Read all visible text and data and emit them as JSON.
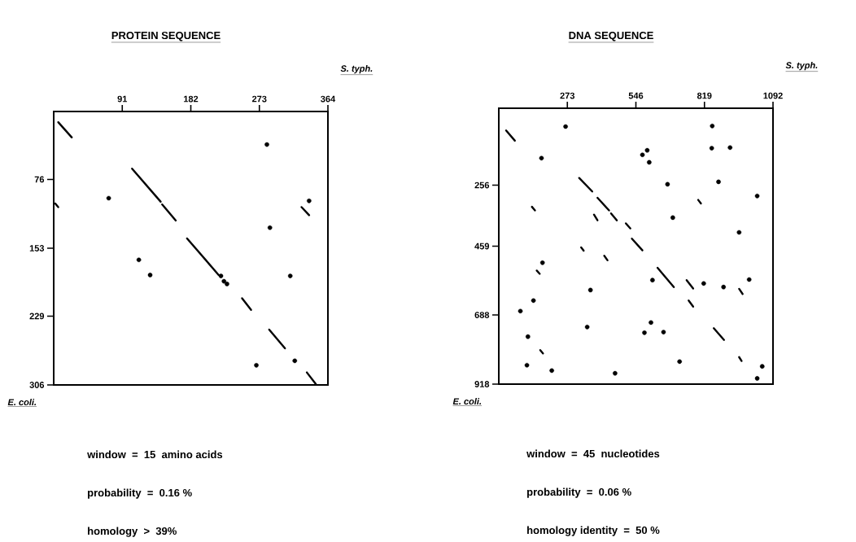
{
  "chart_data": [
    {
      "type": "scatter",
      "title": "PROTEIN SEQUENCE",
      "xlabel": "S. typh.",
      "ylabel": "E. coli.",
      "xlim": [
        0,
        364
      ],
      "ylim": [
        306,
        0
      ],
      "xticks": [
        91,
        182,
        273,
        364
      ],
      "yticks": [
        76,
        153,
        229,
        306
      ],
      "annotations": [
        "window  =  15  amino acids",
        "probability  =  0.16 %",
        "homology  >  39%"
      ],
      "series": [
        {
          "type": "line",
          "color": "#000000",
          "marker": "none",
          "x": [
            6,
            24
          ],
          "values": [
            12,
            29
          ]
        },
        {
          "type": "line",
          "color": "#000000",
          "marker": "none",
          "x": [
            104,
            142
          ],
          "values": [
            64,
            101
          ]
        },
        {
          "type": "line",
          "color": "#000000",
          "marker": "none",
          "x": [
            144,
            162
          ],
          "values": [
            104,
            122
          ]
        },
        {
          "type": "line",
          "color": "#000000",
          "marker": "none",
          "x": [
            177,
            219
          ],
          "values": [
            142,
            183
          ]
        },
        {
          "type": "line",
          "color": "#000000",
          "marker": "none",
          "x": [
            250,
            262
          ],
          "values": [
            209,
            222
          ]
        },
        {
          "type": "line",
          "color": "#000000",
          "marker": "none",
          "x": [
            286,
            307
          ],
          "values": [
            244,
            265
          ]
        },
        {
          "type": "line",
          "color": "#000000",
          "marker": "none",
          "x": [
            336,
            348
          ],
          "values": [
            292,
            305
          ]
        },
        {
          "type": "line",
          "color": "#000000",
          "marker": "none",
          "x": [
            329,
            339
          ],
          "values": [
            107,
            116
          ]
        },
        {
          "type": "line",
          "color": "#000000",
          "marker": "none",
          "x": [
            2,
            6
          ],
          "values": [
            103,
            107
          ]
        },
        {
          "type": "scatter",
          "color": "#000000",
          "marker": "circle",
          "x": [
            222,
            226,
            230,
            283,
            73,
            339,
            287,
            128,
            314,
            320,
            269,
            113
          ],
          "values": [
            184,
            190,
            193,
            37,
            97,
            100,
            130,
            183,
            184,
            279,
            284,
            166
          ]
        }
      ]
    },
    {
      "type": "scatter",
      "title": "DNA SEQUENCE",
      "xlabel": "S. typh.",
      "ylabel": "E. coli.",
      "xlim": [
        0,
        1092
      ],
      "ylim": [
        918,
        0
      ],
      "xticks": [
        273,
        546,
        819,
        1092
      ],
      "yticks": [
        256,
        459,
        688,
        918
      ],
      "annotations": [
        "window  =  45  nucleotides",
        "probability  =  0.06 %",
        "homology identity  =  50 %"
      ],
      "series": [
        {
          "type": "line",
          "color": "#000000",
          "marker": "none",
          "x": [
            29,
            64
          ],
          "values": [
            74,
            108
          ]
        },
        {
          "type": "line",
          "color": "#000000",
          "marker": "none",
          "x": [
            320,
            372
          ],
          "values": [
            232,
            277
          ]
        },
        {
          "type": "line",
          "color": "#000000",
          "marker": "none",
          "x": [
            393,
            439
          ],
          "values": [
            298,
            340
          ]
        },
        {
          "type": "line",
          "color": "#000000",
          "marker": "none",
          "x": [
            447,
            470
          ],
          "values": [
            350,
            373
          ]
        },
        {
          "type": "line",
          "color": "#000000",
          "marker": "none",
          "x": [
            506,
            524
          ],
          "values": [
            383,
            400
          ]
        },
        {
          "type": "line",
          "color": "#000000",
          "marker": "none",
          "x": [
            530,
            572
          ],
          "values": [
            434,
            473
          ]
        },
        {
          "type": "line",
          "color": "#000000",
          "marker": "none",
          "x": [
            632,
            697
          ],
          "values": [
            531,
            595
          ]
        },
        {
          "type": "line",
          "color": "#000000",
          "marker": "none",
          "x": [
            748,
            774
          ],
          "values": [
            572,
            600
          ]
        },
        {
          "type": "line",
          "color": "#000000",
          "marker": "none",
          "x": [
            756,
            774
          ],
          "values": [
            640,
            660
          ]
        },
        {
          "type": "line",
          "color": "#000000",
          "marker": "none",
          "x": [
            856,
            897
          ],
          "values": [
            732,
            771
          ]
        },
        {
          "type": "line",
          "color": "#000000",
          "marker": "none",
          "x": [
            957,
            967
          ],
          "values": [
            828,
            841
          ]
        },
        {
          "type": "line",
          "color": "#000000",
          "marker": "none",
          "x": [
            957,
            971
          ],
          "values": [
            601,
            618
          ]
        },
        {
          "type": "line",
          "color": "#000000",
          "marker": "none",
          "x": [
            132,
            144
          ],
          "values": [
            328,
            340
          ]
        },
        {
          "type": "line",
          "color": "#000000",
          "marker": "none",
          "x": [
            379,
            393
          ],
          "values": [
            354,
            373
          ]
        },
        {
          "type": "line",
          "color": "#000000",
          "marker": "none",
          "x": [
            328,
            338
          ],
          "values": [
            463,
            474
          ]
        },
        {
          "type": "line",
          "color": "#000000",
          "marker": "none",
          "x": [
            420,
            433
          ],
          "values": [
            491,
            506
          ]
        },
        {
          "type": "line",
          "color": "#000000",
          "marker": "none",
          "x": [
            151,
            163
          ],
          "values": [
            540,
            551
          ]
        },
        {
          "type": "line",
          "color": "#000000",
          "marker": "none",
          "x": [
            165,
            176
          ],
          "values": [
            805,
            816
          ]
        },
        {
          "type": "line",
          "color": "#000000",
          "marker": "none",
          "x": [
            794,
            805
          ],
          "values": [
            305,
            317
          ]
        },
        {
          "type": "scatter",
          "color": "#000000",
          "marker": "circle",
          "x": [
            170,
            572,
            591,
            599,
            848,
            921,
            850,
            875,
            672,
            1029,
            693,
            957,
            174,
            138,
            612,
            816,
            895,
            997,
            352,
            606,
            580,
            656,
            720,
            463,
            1049,
            1029,
            266,
            365,
            86,
            116,
            112,
            211
          ],
          "values": [
            166,
            155,
            140,
            180,
            133,
            131,
            59,
            245,
            253,
            292,
            364,
            413,
            514,
            640,
            572,
            583,
            595,
            570,
            728,
            713,
            747,
            745,
            843,
            882,
            859,
            899,
            61,
            605,
            675,
            760,
            855,
            873
          ]
        }
      ]
    }
  ]
}
